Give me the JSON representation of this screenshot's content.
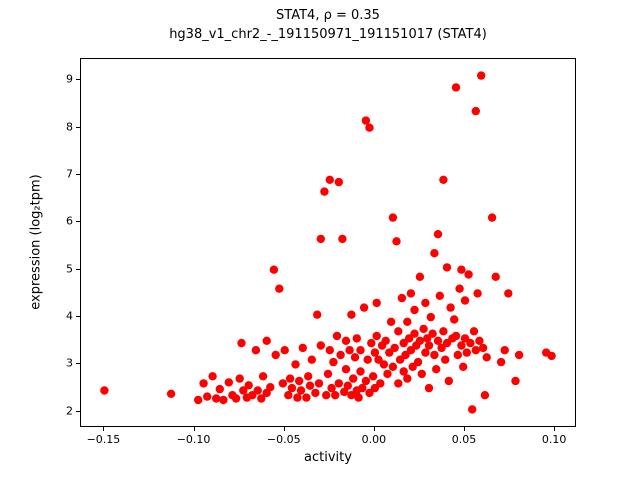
{
  "chart_data": {
    "type": "scatter",
    "title_line1": "STAT4, ρ = 0.35",
    "title_line2": "hg38_v1_chr2_-_191150971_191151017 (STAT4)",
    "xlabel": "activity",
    "ylabel": "expression (log₂tpm)",
    "marker_color": "#ff0000",
    "marker_radius": 4.2,
    "xlim": [
      -0.163,
      0.111
    ],
    "ylim": [
      1.7,
      9.45
    ],
    "xtick_values": [
      -0.15,
      -0.1,
      -0.05,
      0.0,
      0.05,
      0.1
    ],
    "xtick_labels": [
      "−0.15",
      "−0.10",
      "−0.05",
      "0.00",
      "0.05",
      "0.10"
    ],
    "ytick_values": [
      2,
      3,
      4,
      5,
      6,
      7,
      8,
      9
    ],
    "ytick_labels": [
      "2",
      "3",
      "4",
      "5",
      "6",
      "7",
      "8",
      "9"
    ],
    "points": [
      [
        -0.15,
        2.45
      ],
      [
        -0.113,
        2.38
      ],
      [
        -0.098,
        2.25
      ],
      [
        -0.095,
        2.6
      ],
      [
        -0.093,
        2.32
      ],
      [
        -0.09,
        2.75
      ],
      [
        -0.088,
        2.28
      ],
      [
        -0.086,
        2.48
      ],
      [
        -0.084,
        2.25
      ],
      [
        -0.081,
        2.62
      ],
      [
        -0.079,
        2.35
      ],
      [
        -0.077,
        2.28
      ],
      [
        -0.075,
        2.7
      ],
      [
        -0.074,
        3.45
      ],
      [
        -0.073,
        2.45
      ],
      [
        -0.071,
        2.3
      ],
      [
        -0.07,
        2.56
      ],
      [
        -0.068,
        2.35
      ],
      [
        -0.066,
        3.3
      ],
      [
        -0.065,
        2.45
      ],
      [
        -0.063,
        2.28
      ],
      [
        -0.062,
        2.75
      ],
      [
        -0.06,
        2.4
      ],
      [
        -0.06,
        3.5
      ],
      [
        -0.058,
        2.52
      ],
      [
        -0.056,
        5.0
      ],
      [
        -0.055,
        3.2
      ],
      [
        -0.053,
        4.6
      ],
      [
        -0.051,
        2.6
      ],
      [
        -0.05,
        3.3
      ],
      [
        -0.048,
        2.35
      ],
      [
        -0.047,
        2.7
      ],
      [
        -0.046,
        2.5
      ],
      [
        -0.044,
        3.0
      ],
      [
        -0.043,
        2.3
      ],
      [
        -0.042,
        2.65
      ],
      [
        -0.041,
        2.45
      ],
      [
        -0.04,
        3.35
      ],
      [
        -0.038,
        2.3
      ],
      [
        -0.037,
        2.75
      ],
      [
        -0.036,
        2.55
      ],
      [
        -0.035,
        3.1
      ],
      [
        -0.033,
        2.4
      ],
      [
        -0.032,
        4.05
      ],
      [
        -0.031,
        2.6
      ],
      [
        -0.03,
        3.4
      ],
      [
        -0.03,
        5.65
      ],
      [
        -0.028,
        6.65
      ],
      [
        -0.027,
        2.35
      ],
      [
        -0.026,
        2.8
      ],
      [
        -0.025,
        6.9
      ],
      [
        -0.025,
        3.3
      ],
      [
        -0.024,
        2.5
      ],
      [
        -0.023,
        3.05
      ],
      [
        -0.022,
        2.35
      ],
      [
        -0.021,
        3.6
      ],
      [
        -0.02,
        6.85
      ],
      [
        -0.02,
        2.6
      ],
      [
        -0.019,
        3.2
      ],
      [
        -0.018,
        5.65
      ],
      [
        -0.017,
        2.42
      ],
      [
        -0.016,
        2.9
      ],
      [
        -0.016,
        3.5
      ],
      [
        -0.015,
        2.55
      ],
      [
        -0.014,
        3.3
      ],
      [
        -0.013,
        2.35
      ],
      [
        -0.013,
        4.05
      ],
      [
        -0.012,
        2.7
      ],
      [
        -0.011,
        3.15
      ],
      [
        -0.01,
        2.45
      ],
      [
        -0.01,
        3.55
      ],
      [
        -0.009,
        2.3
      ],
      [
        -0.008,
        2.85
      ],
      [
        -0.008,
        3.3
      ],
      [
        -0.007,
        2.5
      ],
      [
        -0.006,
        4.2
      ],
      [
        -0.005,
        8.15
      ],
      [
        -0.005,
        2.65
      ],
      [
        -0.004,
        3.1
      ],
      [
        -0.003,
        8.0
      ],
      [
        -0.003,
        2.4
      ],
      [
        -0.002,
        3.45
      ],
      [
        -0.001,
        2.75
      ],
      [
        0.0,
        3.25
      ],
      [
        0.0,
        2.5
      ],
      [
        0.001,
        3.6
      ],
      [
        0.001,
        4.3
      ],
      [
        0.002,
        3.1
      ],
      [
        0.003,
        2.6
      ],
      [
        0.004,
        3.4
      ],
      [
        0.005,
        3.0
      ],
      [
        0.006,
        3.5
      ],
      [
        0.007,
        2.8
      ],
      [
        0.008,
        3.25
      ],
      [
        0.009,
        3.9
      ],
      [
        0.01,
        6.1
      ],
      [
        0.01,
        2.95
      ],
      [
        0.011,
        3.35
      ],
      [
        0.012,
        5.6
      ],
      [
        0.013,
        2.6
      ],
      [
        0.013,
        3.7
      ],
      [
        0.014,
        3.1
      ],
      [
        0.015,
        4.4
      ],
      [
        0.016,
        2.85
      ],
      [
        0.016,
        3.45
      ],
      [
        0.017,
        3.2
      ],
      [
        0.018,
        3.9
      ],
      [
        0.018,
        2.7
      ],
      [
        0.019,
        3.55
      ],
      [
        0.02,
        4.5
      ],
      [
        0.02,
        3.3
      ],
      [
        0.021,
        2.95
      ],
      [
        0.022,
        3.65
      ],
      [
        0.022,
        4.15
      ],
      [
        0.023,
        3.4
      ],
      [
        0.024,
        3.05
      ],
      [
        0.025,
        4.85
      ],
      [
        0.025,
        3.5
      ],
      [
        0.026,
        2.8
      ],
      [
        0.027,
        3.75
      ],
      [
        0.028,
        3.25
      ],
      [
        0.028,
        4.3
      ],
      [
        0.029,
        3.55
      ],
      [
        0.03,
        2.5
      ],
      [
        0.03,
        3.4
      ],
      [
        0.031,
        4.0
      ],
      [
        0.032,
        3.65
      ],
      [
        0.033,
        5.35
      ],
      [
        0.033,
        3.2
      ],
      [
        0.034,
        2.9
      ],
      [
        0.035,
        5.75
      ],
      [
        0.035,
        3.5
      ],
      [
        0.036,
        4.45
      ],
      [
        0.037,
        3.35
      ],
      [
        0.038,
        6.9
      ],
      [
        0.038,
        3.7
      ],
      [
        0.039,
        3.1
      ],
      [
        0.04,
        5.05
      ],
      [
        0.04,
        3.45
      ],
      [
        0.041,
        2.65
      ],
      [
        0.042,
        4.2
      ],
      [
        0.043,
        3.55
      ],
      [
        0.044,
        3.95
      ],
      [
        0.045,
        8.85
      ],
      [
        0.045,
        3.6
      ],
      [
        0.046,
        3.2
      ],
      [
        0.047,
        4.6
      ],
      [
        0.048,
        5.0
      ],
      [
        0.048,
        3.4
      ],
      [
        0.049,
        2.95
      ],
      [
        0.05,
        4.35
      ],
      [
        0.05,
        3.55
      ],
      [
        0.051,
        3.25
      ],
      [
        0.052,
        4.9
      ],
      [
        0.053,
        3.45
      ],
      [
        0.054,
        2.05
      ],
      [
        0.055,
        3.7
      ],
      [
        0.056,
        8.35
      ],
      [
        0.056,
        3.3
      ],
      [
        0.057,
        4.5
      ],
      [
        0.058,
        3.5
      ],
      [
        0.059,
        9.1
      ],
      [
        0.06,
        3.35
      ],
      [
        0.061,
        2.35
      ],
      [
        0.062,
        3.15
      ],
      [
        0.065,
        6.1
      ],
      [
        0.067,
        4.85
      ],
      [
        0.07,
        3.05
      ],
      [
        0.072,
        3.3
      ],
      [
        0.074,
        4.5
      ],
      [
        0.078,
        2.65
      ],
      [
        0.08,
        3.2
      ],
      [
        0.095,
        3.25
      ],
      [
        0.098,
        3.18
      ]
    ]
  }
}
